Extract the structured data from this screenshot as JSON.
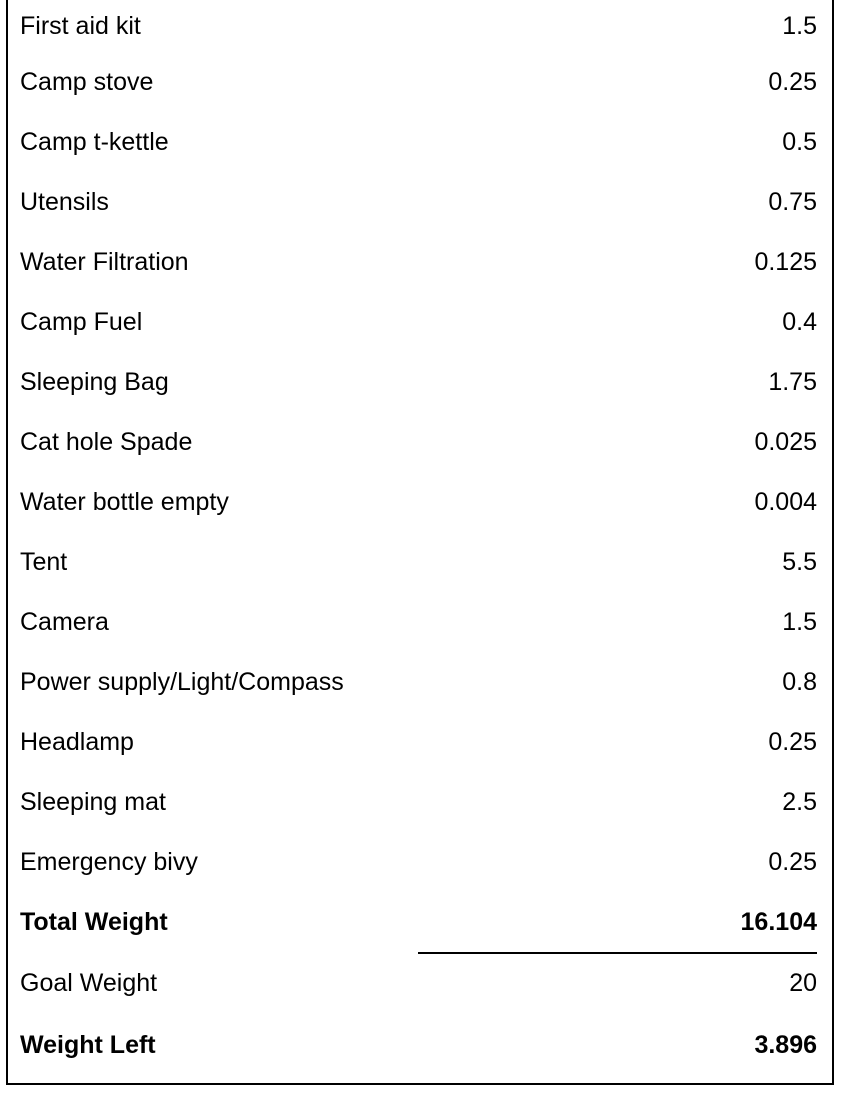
{
  "items": [
    {
      "label": "First aid kit",
      "value": "1.5"
    },
    {
      "label": "Camp stove",
      "value": "0.25"
    },
    {
      "label": "Camp t-kettle",
      "value": "0.5"
    },
    {
      "label": "Utensils",
      "value": "0.75"
    },
    {
      "label": "Water Filtration",
      "value": "0.125"
    },
    {
      "label": "Camp Fuel",
      "value": "0.4"
    },
    {
      "label": "Sleeping Bag",
      "value": "1.75"
    },
    {
      "label": "Cat hole Spade",
      "value": "0.025"
    },
    {
      "label": "Water bottle empty",
      "value": "0.004"
    },
    {
      "label": "Tent",
      "value": "5.5"
    },
    {
      "label": "Camera",
      "value": "1.5"
    },
    {
      "label": "Power supply/Light/Compass",
      "value": "0.8"
    },
    {
      "label": "Headlamp",
      "value": "0.25"
    },
    {
      "label": "Sleeping mat",
      "value": "2.5"
    },
    {
      "label": "Emergency bivy",
      "value": "0.25"
    }
  ],
  "summary": {
    "total": {
      "label": "Total Weight",
      "value": "16.104"
    },
    "goal": {
      "label": "Goal Weight",
      "value": "20"
    },
    "left": {
      "label": "Weight Left",
      "value": "3.896"
    }
  }
}
